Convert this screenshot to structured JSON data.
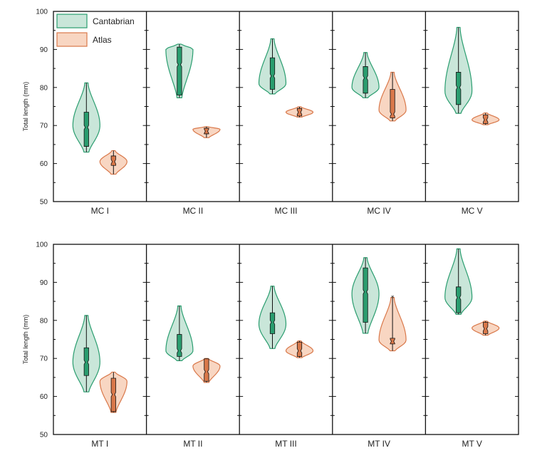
{
  "chart_data": [
    {
      "type": "violin",
      "ylabel": "Total length (mm)",
      "ylim": [
        50,
        100
      ],
      "yticks": [
        50,
        60,
        70,
        80,
        90,
        100
      ],
      "categories": [
        "MC I",
        "MC II",
        "MC III",
        "MC IV",
        "MC V"
      ],
      "legend": {
        "position": "top-left",
        "entries": [
          "Cantabrian",
          "Atlas"
        ]
      },
      "series": [
        {
          "name": "Cantabrian",
          "color": "#2a9d6f",
          "fill": "#c9e6d9",
          "groups": [
            {
              "min": 63,
              "q1": 64.5,
              "median": 69.5,
              "q3": 73.5,
              "max": 81.2,
              "peak": 70
            },
            {
              "min": 77.3,
              "q1": 78,
              "median": 86,
              "q3": 90.6,
              "max": 91.4,
              "peak": 90
            },
            {
              "min": 78.3,
              "q1": 79.5,
              "median": 83,
              "q3": 87.8,
              "max": 92.8,
              "peak": 81
            },
            {
              "min": 77.3,
              "q1": 78.5,
              "median": 82.5,
              "q3": 85.5,
              "max": 89.2,
              "peak": 80
            },
            {
              "min": 73.2,
              "q1": 75.5,
              "median": 80,
              "q3": 84,
              "max": 95.8,
              "peak": 79
            }
          ]
        },
        {
          "name": "Atlas",
          "color": "#d9784a",
          "fill": "#f8d6c2",
          "groups": [
            {
              "min": 57.2,
              "q1": 59.5,
              "median": 60.5,
              "q3": 62,
              "max": 63.4,
              "peak": 60.5
            },
            {
              "min": 66.8,
              "q1": 67.8,
              "median": 68.5,
              "q3": 69.3,
              "max": 69.7,
              "peak": 69
            },
            {
              "min": 72.2,
              "q1": 72.5,
              "median": 73.5,
              "q3": 74.5,
              "max": 74.9,
              "peak": 73.5
            },
            {
              "min": 71.2,
              "q1": 72,
              "median": 73,
              "q3": 79.5,
              "max": 84,
              "peak": 74
            },
            {
              "min": 70.2,
              "q1": 70.5,
              "median": 71.5,
              "q3": 72.8,
              "max": 73.3,
              "peak": 71.5
            }
          ]
        }
      ]
    },
    {
      "type": "violin",
      "ylabel": "Total length (mm)",
      "ylim": [
        50,
        100
      ],
      "yticks": [
        50,
        60,
        70,
        80,
        90,
        100
      ],
      "categories": [
        "MT I",
        "MT II",
        "MT III",
        "MT IV",
        "MT V"
      ],
      "series": [
        {
          "name": "Cantabrian",
          "color": "#2a9d6f",
          "fill": "#c9e6d9",
          "groups": [
            {
              "min": 61.2,
              "q1": 65.5,
              "median": 69,
              "q3": 72.8,
              "max": 81.3,
              "peak": 69
            },
            {
              "min": 69.4,
              "q1": 70.5,
              "median": 72,
              "q3": 76.3,
              "max": 83.8,
              "peak": 72
            },
            {
              "min": 72.6,
              "q1": 76.5,
              "median": 79.5,
              "q3": 82,
              "max": 89,
              "peak": 79
            },
            {
              "min": 76.6,
              "q1": 79.5,
              "median": 87.5,
              "q3": 93.8,
              "max": 96.5,
              "peak": 87
            },
            {
              "min": 81.6,
              "q1": 82,
              "median": 86,
              "q3": 88.8,
              "max": 98.8,
              "peak": 86
            }
          ]
        },
        {
          "name": "Atlas",
          "color": "#d9784a",
          "fill": "#f8d6c2",
          "groups": [
            {
              "min": 55.8,
              "q1": 56,
              "median": 60.5,
              "q3": 64.8,
              "max": 66.4,
              "peak": 64
            },
            {
              "min": 63.7,
              "q1": 64,
              "median": 66.5,
              "q3": 69.9,
              "max": 70,
              "peak": 68
            },
            {
              "min": 70.2,
              "q1": 70.5,
              "median": 72,
              "q3": 74.3,
              "max": 74.6,
              "peak": 72
            },
            {
              "min": 72.0,
              "q1": 73.8,
              "median": 74.5,
              "q3": 75.3,
              "max": 86.0,
              "peak": 74.8,
              "outlier": 86
            },
            {
              "min": 76.1,
              "q1": 76.5,
              "median": 77.8,
              "q3": 79.5,
              "max": 79.8,
              "peak": 78
            }
          ]
        }
      ]
    }
  ]
}
